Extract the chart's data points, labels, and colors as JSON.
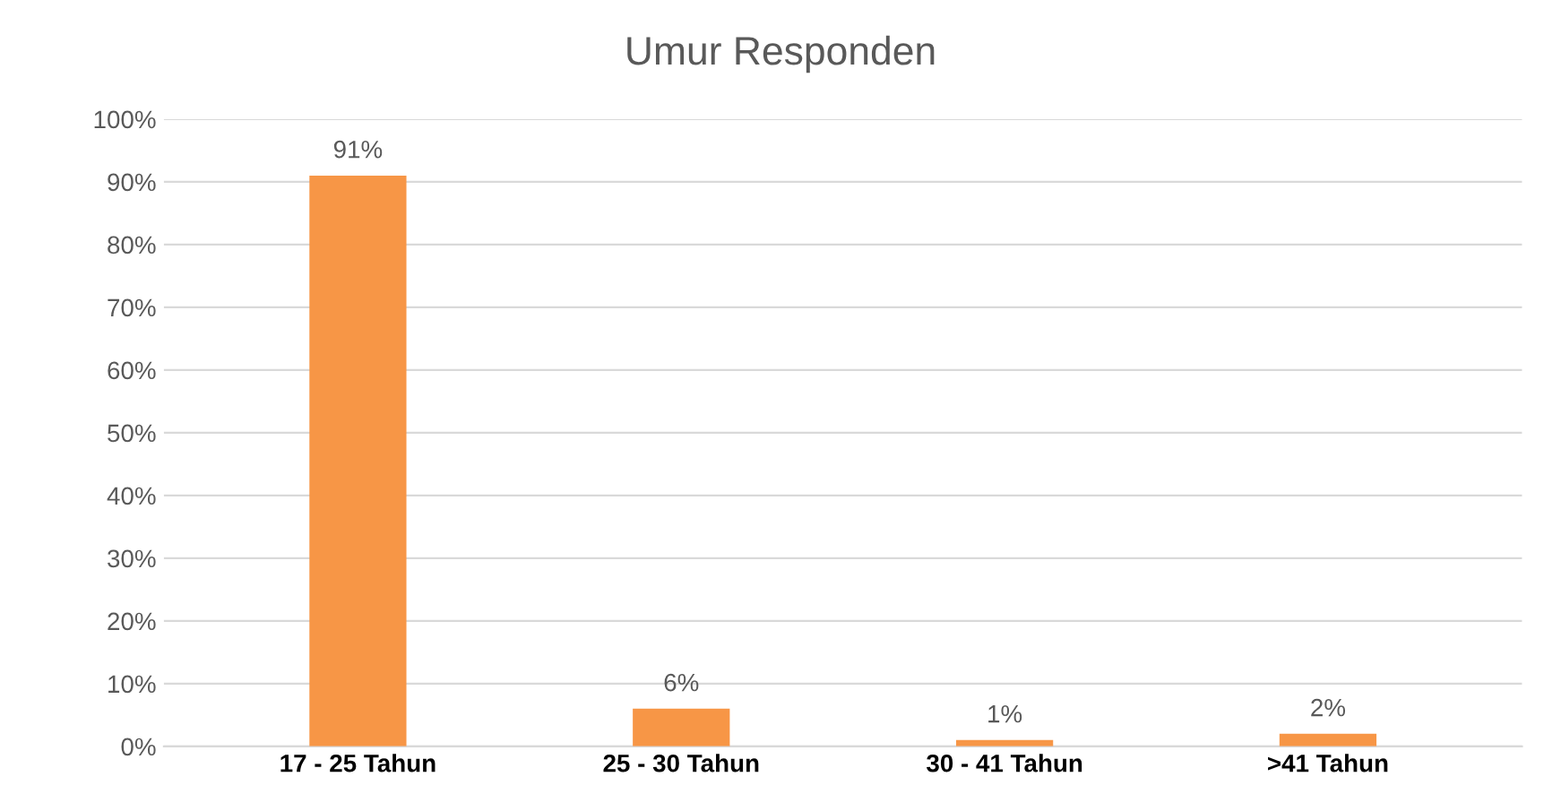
{
  "chart_data": {
    "type": "bar",
    "title": "Umur Responden",
    "categories": [
      "17 - 25 Tahun",
      "25 - 30 Tahun",
      "30 - 41 Tahun",
      ">41 Tahun"
    ],
    "values": [
      91,
      6,
      1,
      2
    ],
    "value_labels": [
      "91%",
      "6%",
      "1%",
      "2%"
    ],
    "color": "#f79646",
    "ylim": [
      0,
      100
    ],
    "yticks": [
      {
        "value": 0,
        "label": "0%"
      },
      {
        "value": 10,
        "label": "10%"
      },
      {
        "value": 20,
        "label": "20%"
      },
      {
        "value": 30,
        "label": "30%"
      },
      {
        "value": 40,
        "label": "40%"
      },
      {
        "value": 50,
        "label": "50%"
      },
      {
        "value": 60,
        "label": "60%"
      },
      {
        "value": 70,
        "label": "70%"
      },
      {
        "value": 80,
        "label": "80%"
      },
      {
        "value": 90,
        "label": "90%"
      },
      {
        "value": 100,
        "label": "100%"
      }
    ],
    "grid": "y",
    "legend": false
  }
}
